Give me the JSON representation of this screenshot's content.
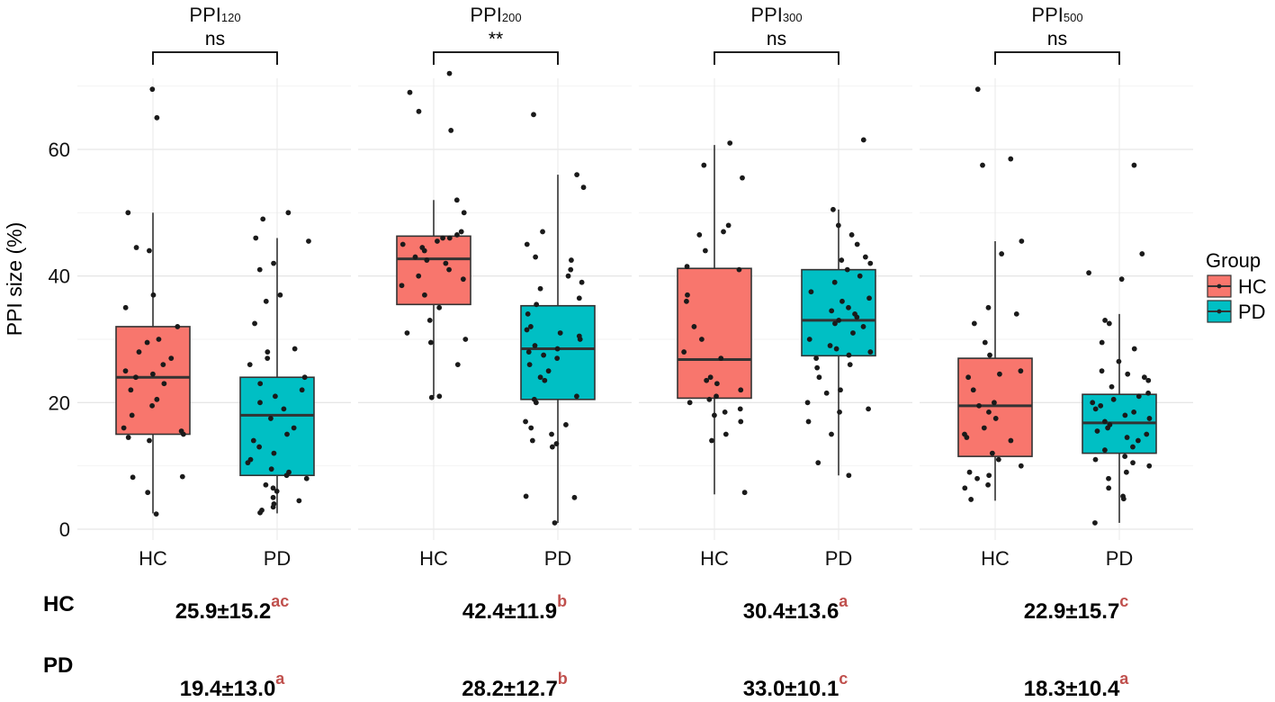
{
  "chart_data": {
    "type": "boxplot",
    "ylabel": "PPI size (%)",
    "ylim": [
      -2,
      72
    ],
    "yticks": [
      0,
      20,
      40,
      60
    ],
    "grid": true,
    "legend": {
      "title": "Group",
      "position": "right",
      "entries": [
        {
          "name": "HC",
          "color": "#f8766d"
        },
        {
          "name": "PD",
          "color": "#00bfc4"
        }
      ]
    },
    "categories": [
      "HC",
      "PD"
    ],
    "panels": [
      {
        "title_main": "PPI",
        "title_sub": "120",
        "significance": "ns",
        "boxes": [
          {
            "group": "HC",
            "min": 2.5,
            "q1": 15,
            "median": 24,
            "q3": 32,
            "max": 50
          },
          {
            "group": "PD",
            "min": 2.5,
            "q1": 8.5,
            "median": 18,
            "q3": 24,
            "max": 46
          }
        ],
        "points": {
          "HC": [
            69.5,
            65,
            50,
            44.5,
            44,
            37,
            35,
            32,
            30,
            29.5,
            28,
            27,
            26,
            25,
            24.5,
            24,
            23,
            22,
            20.5,
            19.5,
            18,
            16,
            15.5,
            15,
            14.5,
            14,
            8.3,
            8.2,
            5.8,
            2.4
          ],
          "PD": [
            50,
            49,
            46,
            45.5,
            42,
            41,
            37,
            36,
            32.5,
            28.5,
            28,
            27,
            26,
            24,
            23,
            22,
            21,
            20,
            19,
            17.5,
            16,
            15,
            14,
            13,
            12,
            11,
            10.5,
            9.5,
            9,
            8.5,
            8,
            7,
            6.5,
            6,
            5,
            4.5,
            4,
            3.5,
            3,
            2.6
          ]
        }
      },
      {
        "title_main": "PPI",
        "title_sub": "200",
        "significance": "**",
        "boxes": [
          {
            "group": "HC",
            "min": 21,
            "q1": 35.5,
            "median": 42.7,
            "q3": 46.3,
            "max": 52
          },
          {
            "group": "PD",
            "min": 1,
            "q1": 20.5,
            "median": 28.5,
            "q3": 35.3,
            "max": 56
          }
        ],
        "points": {
          "HC": [
            72,
            69,
            66,
            63,
            52,
            50,
            47,
            46.5,
            46,
            46,
            45.5,
            45,
            44.5,
            44,
            43,
            42.5,
            42,
            41,
            40,
            39.5,
            38.5,
            37,
            35,
            33,
            31,
            30,
            29.5,
            26,
            21,
            20.8
          ],
          "PD": [
            65.5,
            56,
            54,
            47,
            45,
            43,
            42.5,
            41,
            40,
            39,
            38,
            36.5,
            35.5,
            34,
            32,
            31.5,
            31,
            30.5,
            30,
            29,
            28.5,
            28,
            27.5,
            27,
            26,
            25,
            24,
            23.5,
            21,
            20.5,
            20,
            17,
            16.5,
            16,
            15,
            14,
            13.5,
            13,
            5.2,
            5,
            1
          ]
        }
      },
      {
        "title_main": "PPI",
        "title_sub": "300",
        "significance": "ns",
        "boxes": [
          {
            "group": "HC",
            "min": 5.5,
            "q1": 20.7,
            "median": 26.8,
            "q3": 41.2,
            "max": 60.7
          },
          {
            "group": "PD",
            "min": 8.5,
            "q1": 27.4,
            "median": 33,
            "q3": 41,
            "max": 50.5
          }
        ],
        "points": {
          "HC": [
            61,
            57.5,
            55.5,
            48,
            47,
            46.5,
            44,
            41.5,
            41,
            37,
            36,
            32,
            30,
            28,
            27,
            24,
            23.5,
            23,
            22,
            21,
            20.5,
            20,
            19,
            18.5,
            18,
            17,
            15,
            14,
            5.8
          ],
          "PD": [
            61.5,
            50.5,
            48,
            46.5,
            45,
            43,
            42.5,
            42,
            41,
            40,
            39,
            37.5,
            36.5,
            36,
            35,
            34.5,
            34,
            33.5,
            33,
            32.5,
            32,
            31,
            30,
            29,
            28.5,
            28,
            27.5,
            27,
            26,
            25.5,
            24,
            22,
            21.5,
            20,
            19,
            18.5,
            17,
            15,
            10.5,
            8.5
          ]
        }
      },
      {
        "title_main": "PPI",
        "title_sub": "500",
        "significance": "ns",
        "boxes": [
          {
            "group": "HC",
            "min": 4.5,
            "q1": 11.5,
            "median": 19.5,
            "q3": 27,
            "max": 45.5
          },
          {
            "group": "PD",
            "min": 1,
            "q1": 12,
            "median": 16.8,
            "q3": 21.3,
            "max": 34
          }
        ],
        "points": {
          "HC": [
            69.5,
            58.5,
            57.5,
            45.5,
            43.5,
            35,
            34,
            32.5,
            29.5,
            27.5,
            25,
            24.5,
            24,
            22,
            20,
            19.5,
            18.5,
            17.5,
            16,
            15,
            14.5,
            14,
            12,
            11,
            10,
            9,
            8.5,
            8,
            7,
            6.5,
            4.7
          ],
          "PD": [
            57.5,
            43.5,
            40.5,
            39.5,
            33,
            32.5,
            29.5,
            28.5,
            26.5,
            25,
            24.5,
            24,
            23.5,
            22.5,
            21.5,
            21,
            20.5,
            20,
            19.5,
            19,
            18.5,
            18,
            17.5,
            17,
            16.5,
            16,
            15.5,
            15,
            14.5,
            14,
            13,
            12.5,
            11.5,
            11,
            10.5,
            10,
            9,
            8,
            6.5,
            5.2,
            4.8,
            1
          ]
        }
      }
    ]
  },
  "stats_table": {
    "rows": [
      {
        "label": "HC",
        "cells": [
          {
            "value": "25.9±15.2",
            "sup": "ac"
          },
          {
            "value": "42.4±11.9",
            "sup": "b"
          },
          {
            "value": "30.4±13.6",
            "sup": "a"
          },
          {
            "value": "22.9±15.7",
            "sup": "c"
          }
        ]
      },
      {
        "label": "PD",
        "cells": [
          {
            "value": "19.4±13.0",
            "sup": "a"
          },
          {
            "value": "28.2±12.7",
            "sup": "b"
          },
          {
            "value": "33.0±10.1",
            "sup": "c"
          },
          {
            "value": "18.3±10.4",
            "sup": "a"
          }
        ]
      }
    ]
  }
}
